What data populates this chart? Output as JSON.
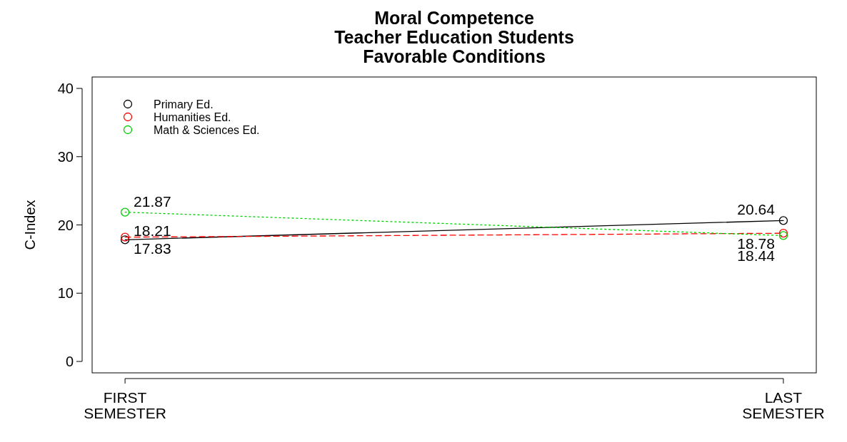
{
  "chart_data": {
    "type": "line",
    "title": "Moral Competence\nTeacher Education Students\nFavorable Conditions",
    "ylabel": "C-Index",
    "categories": [
      "FIRST SEMESTER",
      "LAST SEMESTER"
    ],
    "ylim": [
      0,
      40
    ],
    "yticks": [
      0,
      10,
      20,
      30,
      40
    ],
    "marker": "circle",
    "data_labels": true,
    "legend": "top left",
    "grid": false,
    "series": [
      {
        "name": "Primary Ed.",
        "color": "#000000",
        "line_style": "solid",
        "values": [
          17.83,
          20.64
        ]
      },
      {
        "name": "Humanities Ed.",
        "color": "#ff0000",
        "line_style": "dashed",
        "values": [
          18.21,
          18.78
        ]
      },
      {
        "name": "Math & Sciences Ed.",
        "color": "#00cd00",
        "line_style": "dotted",
        "values": [
          21.87,
          18.44
        ]
      }
    ]
  }
}
